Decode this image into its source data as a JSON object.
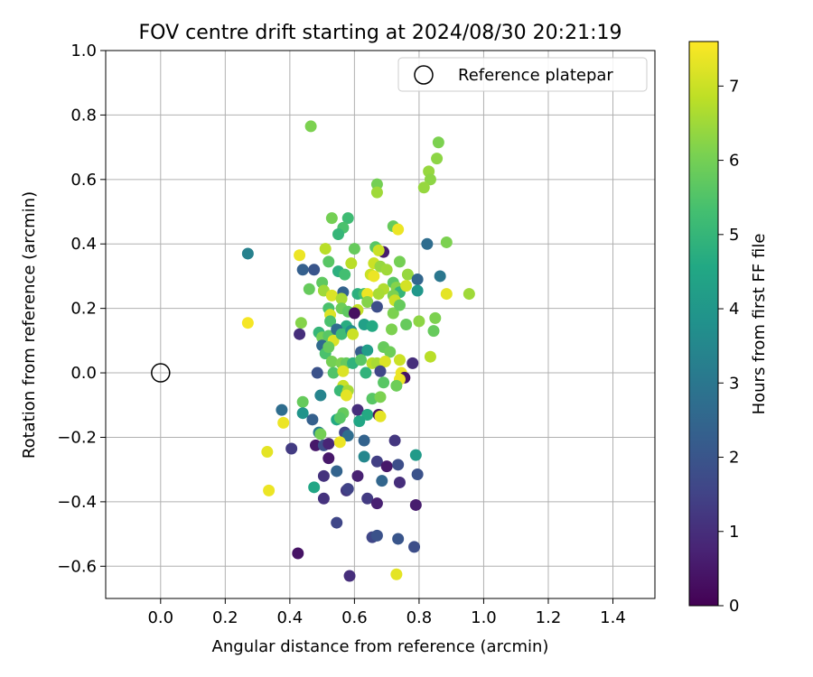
{
  "chart_data": {
    "type": "scatter",
    "title": "FOV centre drift starting at 2024/08/30 20:21:19",
    "xlabel": "Angular distance from reference (arcmin)",
    "ylabel": "Rotation from reference (arcmin)",
    "xlim": [
      -0.17,
      1.53
    ],
    "ylim": [
      -0.7,
      1.0
    ],
    "xticks": [
      "0.0",
      "0.2",
      "0.4",
      "0.6",
      "0.8",
      "1.0",
      "1.2",
      "1.4"
    ],
    "yticks": [
      "1.0",
      "0.8",
      "0.6",
      "0.4",
      "0.2",
      "0.0",
      "−0.2",
      "−0.4",
      "−0.6"
    ],
    "grid": true,
    "legend": {
      "placement": "top-right",
      "entries": [
        "Reference platepar"
      ]
    },
    "reference_point": {
      "x": 0.0,
      "y": 0.0
    },
    "colorbar": {
      "label": "Hours from first FF file",
      "range": [
        0,
        7.6
      ],
      "ticks": [
        "0",
        "1",
        "2",
        "3",
        "4",
        "5",
        "6",
        "7"
      ],
      "colormap": "viridis"
    },
    "points": [
      [
        0.465,
        0.765,
        6.1
      ],
      [
        0.86,
        0.715,
        6.1
      ],
      [
        0.855,
        0.665,
        6.3
      ],
      [
        0.83,
        0.625,
        6.4
      ],
      [
        0.835,
        0.6,
        6.3
      ],
      [
        0.815,
        0.575,
        6.4
      ],
      [
        0.67,
        0.585,
        6.0
      ],
      [
        0.67,
        0.56,
        6.5
      ],
      [
        0.72,
        0.455,
        5.8
      ],
      [
        0.735,
        0.445,
        7.4
      ],
      [
        0.53,
        0.48,
        6.0
      ],
      [
        0.58,
        0.48,
        5.2
      ],
      [
        0.885,
        0.405,
        6.1
      ],
      [
        0.825,
        0.4,
        2.7
      ],
      [
        0.27,
        0.37,
        3.3
      ],
      [
        0.565,
        0.45,
        5.4
      ],
      [
        0.55,
        0.43,
        5.0
      ],
      [
        0.51,
        0.385,
        6.8
      ],
      [
        0.6,
        0.385,
        5.8
      ],
      [
        0.43,
        0.365,
        7.4
      ],
      [
        0.665,
        0.39,
        5.6
      ],
      [
        0.69,
        0.375,
        0.6
      ],
      [
        0.675,
        0.38,
        7.0
      ],
      [
        0.52,
        0.345,
        5.6
      ],
      [
        0.59,
        0.34,
        6.8
      ],
      [
        0.66,
        0.34,
        7.0
      ],
      [
        0.68,
        0.33,
        6.4
      ],
      [
        0.74,
        0.345,
        6.0
      ],
      [
        0.7,
        0.32,
        6.5
      ],
      [
        0.44,
        0.32,
        2.3
      ],
      [
        0.475,
        0.32,
        2.0
      ],
      [
        0.55,
        0.315,
        4.8
      ],
      [
        0.57,
        0.305,
        5.3
      ],
      [
        0.65,
        0.305,
        7.0
      ],
      [
        0.66,
        0.3,
        7.4
      ],
      [
        0.765,
        0.305,
        6.4
      ],
      [
        0.795,
        0.29,
        2.5
      ],
      [
        0.865,
        0.3,
        3.0
      ],
      [
        0.5,
        0.28,
        5.7
      ],
      [
        0.46,
        0.26,
        5.8
      ],
      [
        0.72,
        0.28,
        5.6
      ],
      [
        0.73,
        0.265,
        6.2
      ],
      [
        0.74,
        0.25,
        5.0
      ],
      [
        0.76,
        0.27,
        7.1
      ],
      [
        0.69,
        0.26,
        6.7
      ],
      [
        0.795,
        0.255,
        4.0
      ],
      [
        0.885,
        0.245,
        7.3
      ],
      [
        0.955,
        0.245,
        6.5
      ],
      [
        0.505,
        0.255,
        6.5
      ],
      [
        0.53,
        0.24,
        7.2
      ],
      [
        0.565,
        0.25,
        2.4
      ],
      [
        0.56,
        0.23,
        6.6
      ],
      [
        0.61,
        0.245,
        4.8
      ],
      [
        0.63,
        0.245,
        5.3
      ],
      [
        0.64,
        0.245,
        7.4
      ],
      [
        0.675,
        0.245,
        6.6
      ],
      [
        0.72,
        0.24,
        6.1
      ],
      [
        0.725,
        0.225,
        7.0
      ],
      [
        0.64,
        0.22,
        6.2
      ],
      [
        0.52,
        0.2,
        5.4
      ],
      [
        0.56,
        0.2,
        5.9
      ],
      [
        0.58,
        0.19,
        5.7
      ],
      [
        0.525,
        0.18,
        7.2
      ],
      [
        0.61,
        0.195,
        6.9
      ],
      [
        0.6,
        0.185,
        0.3
      ],
      [
        0.67,
        0.205,
        1.8
      ],
      [
        0.72,
        0.185,
        6.1
      ],
      [
        0.74,
        0.21,
        5.8
      ],
      [
        0.8,
        0.16,
        6.3
      ],
      [
        0.85,
        0.17,
        6.1
      ],
      [
        0.845,
        0.13,
        5.8
      ],
      [
        0.27,
        0.155,
        7.5
      ],
      [
        0.435,
        0.155,
        6.2
      ],
      [
        0.525,
        0.16,
        5.4
      ],
      [
        0.575,
        0.145,
        4.7
      ],
      [
        0.63,
        0.15,
        4.3
      ],
      [
        0.655,
        0.145,
        4.6
      ],
      [
        0.715,
        0.135,
        6.1
      ],
      [
        0.76,
        0.15,
        5.8
      ],
      [
        0.43,
        0.12,
        1.0
      ],
      [
        0.49,
        0.125,
        5.0
      ],
      [
        0.5,
        0.11,
        6.0
      ],
      [
        0.52,
        0.115,
        5.6
      ],
      [
        0.535,
        0.1,
        7.2
      ],
      [
        0.545,
        0.135,
        2.7
      ],
      [
        0.56,
        0.12,
        5.2
      ],
      [
        0.59,
        0.13,
        3.7
      ],
      [
        0.595,
        0.12,
        7.0
      ],
      [
        0.5,
        0.085,
        2.6
      ],
      [
        0.51,
        0.06,
        5.4
      ],
      [
        0.52,
        0.08,
        5.8
      ],
      [
        0.62,
        0.065,
        2.2
      ],
      [
        0.64,
        0.07,
        4.2
      ],
      [
        0.69,
        0.08,
        5.8
      ],
      [
        0.71,
        0.065,
        5.9
      ],
      [
        0.835,
        0.05,
        6.8
      ],
      [
        0.53,
        0.035,
        6.0
      ],
      [
        0.56,
        0.03,
        6.1
      ],
      [
        0.575,
        0.03,
        5.8
      ],
      [
        0.595,
        0.03,
        4.9
      ],
      [
        0.62,
        0.04,
        5.6
      ],
      [
        0.655,
        0.03,
        6.8
      ],
      [
        0.67,
        0.03,
        6.6
      ],
      [
        0.695,
        0.035,
        7.2
      ],
      [
        0.74,
        0.04,
        7.0
      ],
      [
        0.78,
        0.03,
        1.0
      ],
      [
        0.485,
        0.0,
        1.9
      ],
      [
        0.535,
        0.0,
        5.5
      ],
      [
        0.565,
        0.005,
        7.2
      ],
      [
        0.635,
        0.0,
        4.9
      ],
      [
        0.68,
        0.005,
        1.6
      ],
      [
        0.745,
        0.0,
        7.4
      ],
      [
        0.755,
        -0.015,
        0.4
      ],
      [
        0.74,
        -0.02,
        7.4
      ],
      [
        0.69,
        -0.03,
        5.6
      ],
      [
        0.73,
        -0.04,
        5.9
      ],
      [
        0.565,
        -0.04,
        7.0
      ],
      [
        0.555,
        -0.055,
        5.1
      ],
      [
        0.58,
        -0.055,
        6.6
      ],
      [
        0.575,
        -0.07,
        7.3
      ],
      [
        0.495,
        -0.07,
        3.4
      ],
      [
        0.44,
        -0.09,
        5.8
      ],
      [
        0.655,
        -0.08,
        5.6
      ],
      [
        0.68,
        -0.075,
        6.1
      ],
      [
        0.375,
        -0.115,
        2.7
      ],
      [
        0.44,
        -0.125,
        3.9
      ],
      [
        0.565,
        -0.125,
        5.8
      ],
      [
        0.61,
        -0.115,
        1.0
      ],
      [
        0.64,
        -0.13,
        4.6
      ],
      [
        0.675,
        -0.13,
        0.3
      ],
      [
        0.68,
        -0.135,
        7.3
      ],
      [
        0.47,
        -0.145,
        2.3
      ],
      [
        0.545,
        -0.145,
        4.6
      ],
      [
        0.555,
        -0.14,
        5.6
      ],
      [
        0.615,
        -0.15,
        4.5
      ],
      [
        0.38,
        -0.155,
        7.4
      ],
      [
        0.49,
        -0.185,
        3.2
      ],
      [
        0.495,
        -0.19,
        6.0
      ],
      [
        0.57,
        -0.185,
        1.6
      ],
      [
        0.58,
        -0.195,
        2.7
      ],
      [
        0.405,
        -0.235,
        1.3
      ],
      [
        0.48,
        -0.225,
        0.5
      ],
      [
        0.505,
        -0.225,
        1.8
      ],
      [
        0.52,
        -0.22,
        0.8
      ],
      [
        0.555,
        -0.215,
        7.4
      ],
      [
        0.63,
        -0.21,
        2.4
      ],
      [
        0.725,
        -0.21,
        1.2
      ],
      [
        0.33,
        -0.245,
        7.3
      ],
      [
        0.52,
        -0.265,
        0.5
      ],
      [
        0.63,
        -0.26,
        3.5
      ],
      [
        0.79,
        -0.255,
        4.1
      ],
      [
        0.67,
        -0.275,
        1.4
      ],
      [
        0.7,
        -0.29,
        0.5
      ],
      [
        0.735,
        -0.285,
        1.8
      ],
      [
        0.505,
        -0.32,
        1.1
      ],
      [
        0.545,
        -0.305,
        2.4
      ],
      [
        0.61,
        -0.32,
        0.7
      ],
      [
        0.795,
        -0.315,
        1.9
      ],
      [
        0.335,
        -0.365,
        7.4
      ],
      [
        0.475,
        -0.355,
        4.5
      ],
      [
        0.575,
        -0.365,
        1.2
      ],
      [
        0.58,
        -0.36,
        1.5
      ],
      [
        0.685,
        -0.335,
        2.5
      ],
      [
        0.74,
        -0.34,
        1.0
      ],
      [
        0.505,
        -0.39,
        1.1
      ],
      [
        0.64,
        -0.39,
        1.3
      ],
      [
        0.67,
        -0.405,
        0.7
      ],
      [
        0.79,
        -0.41,
        0.6
      ],
      [
        0.545,
        -0.465,
        1.6
      ],
      [
        0.655,
        -0.51,
        1.6
      ],
      [
        0.67,
        -0.505,
        1.9
      ],
      [
        0.735,
        -0.515,
        2.0
      ],
      [
        0.785,
        -0.54,
        1.8
      ],
      [
        0.425,
        -0.56,
        0.4
      ],
      [
        0.585,
        -0.63,
        1.0
      ],
      [
        0.73,
        -0.625,
        7.3
      ]
    ]
  }
}
